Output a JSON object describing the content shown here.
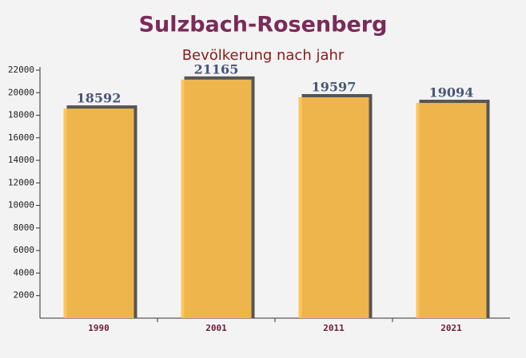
{
  "chart_data": {
    "type": "bar",
    "title": "Sulzbach-Rosenberg",
    "subtitle": "Bevölkerung nach jahr",
    "categories": [
      "1990",
      "2001",
      "2011",
      "2021"
    ],
    "values": [
      18592,
      21165,
      19597,
      19094
    ],
    "color": "#ffc04d",
    "ylim": [
      0,
      22000
    ],
    "yticks": [
      2000,
      4000,
      6000,
      8000,
      10000,
      12000,
      14000,
      16000,
      18000,
      20000,
      22000
    ]
  }
}
